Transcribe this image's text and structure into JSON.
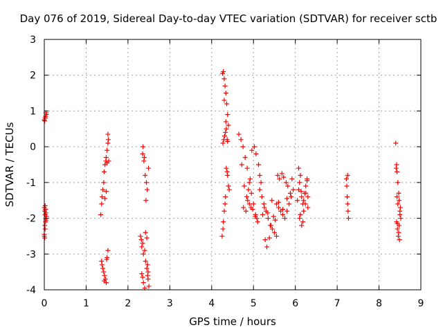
{
  "chart_data": {
    "type": "scatter",
    "title": "Day 076 of 2019, Sidereal Day-to-day VTEC variation (SDTVAR) for receiver sctb",
    "xlabel": "GPS time / hours",
    "ylabel": "SDTVAR / TECUs",
    "xlim": [
      0,
      9
    ],
    "ylim": [
      -4,
      3
    ],
    "xticks": [
      "0",
      "1",
      "2",
      "3",
      "4",
      "5",
      "6",
      "7",
      "8",
      "9"
    ],
    "yticks": [
      "-4",
      "-3",
      "-2",
      "-1",
      "0",
      "1",
      "2",
      "3"
    ],
    "grid": true,
    "marker": "+",
    "color": "#ff0000",
    "series": [
      {
        "name": "SDTVAR",
        "x": [
          0.0,
          0.01,
          0.02,
          0.03,
          0.04,
          0.05,
          0.0,
          0.01,
          0.02,
          0.03,
          0.04,
          0.05,
          0.01,
          0.02,
          0.0,
          0.03,
          0.04,
          0.05,
          0.02,
          0.01,
          0.0,
          0.03,
          1.35,
          1.37,
          1.38,
          1.4,
          1.42,
          1.43,
          1.45,
          1.47,
          1.48,
          1.5,
          1.52,
          1.52,
          1.53,
          1.54,
          1.45,
          1.48,
          1.5,
          1.38,
          1.4,
          1.42,
          1.44,
          1.46,
          1.48,
          1.5,
          1.52,
          1.37,
          1.43,
          1.49,
          2.3,
          2.32,
          2.33,
          2.35,
          2.37,
          2.4,
          2.42,
          2.45,
          2.47,
          2.48,
          2.5,
          2.33,
          2.35,
          2.37,
          2.4,
          2.42,
          2.45,
          2.47,
          2.48,
          2.35,
          2.38,
          2.41,
          2.44,
          2.46,
          2.49,
          2.36,
          2.39,
          2.43,
          4.25,
          4.27,
          4.28,
          4.3,
          4.32,
          4.33,
          4.35,
          4.37,
          4.38,
          4.4,
          4.42,
          4.28,
          4.3,
          4.32,
          4.34,
          4.36,
          4.38,
          4.4,
          4.27,
          4.29,
          4.31,
          4.33,
          4.35,
          4.37,
          4.26,
          4.3,
          4.34,
          4.38,
          4.65,
          4.7,
          4.75,
          4.8,
          4.85,
          4.9,
          4.95,
          5.0,
          5.05,
          5.1,
          4.72,
          4.78,
          4.84,
          4.88,
          4.92,
          4.96,
          5.02,
          5.06,
          5.12,
          5.15,
          4.76,
          4.82,
          4.86,
          4.9,
          4.94,
          4.98,
          5.04,
          5.08,
          5.15,
          5.2,
          5.25,
          5.3,
          5.35,
          5.4,
          5.45,
          5.5,
          5.55,
          5.18,
          5.22,
          5.28,
          5.32,
          5.38,
          5.42,
          5.48,
          5.52,
          5.26,
          5.34,
          5.44,
          5.55,
          5.6,
          5.65,
          5.7,
          5.75,
          5.8,
          5.85,
          5.9,
          5.95,
          5.58,
          5.62,
          5.68,
          5.72,
          5.78,
          5.82,
          5.88,
          5.92,
          5.6,
          5.7,
          5.8,
          6.05,
          6.08,
          6.1,
          6.12,
          6.15,
          6.18,
          6.2,
          6.22,
          6.25,
          6.28,
          6.3,
          6.1,
          6.15,
          6.2,
          6.25,
          6.3,
          6.08,
          6.12,
          6.18,
          6.24,
          6.28,
          6.14,
          7.22,
          7.23,
          7.24,
          7.25,
          7.26,
          7.27,
          7.25,
          8.4,
          8.42,
          8.43,
          8.45,
          8.47,
          8.48,
          8.5,
          8.52,
          8.42,
          8.44,
          8.46,
          8.48,
          8.5,
          8.43,
          8.45,
          8.47,
          8.49,
          8.41,
          8.44,
          8.51
        ],
        "y": [
          0.75,
          0.72,
          0.8,
          0.85,
          0.95,
          0.9,
          -1.7,
          -1.8,
          -1.9,
          -2.0,
          -2.05,
          -1.95,
          -2.2,
          -2.3,
          -2.45,
          -2.1,
          -1.85,
          -2.0,
          -1.65,
          -2.55,
          -2.5,
          -1.75,
          -1.9,
          -1.6,
          -1.4,
          -1.2,
          -1.0,
          -0.7,
          -0.5,
          -0.4,
          -0.3,
          -0.1,
          0.1,
          0.35,
          0.2,
          -0.4,
          -1.45,
          -1.25,
          -0.45,
          -3.3,
          -3.4,
          -3.5,
          -3.6,
          -3.7,
          -3.8,
          -3.1,
          -2.9,
          -3.2,
          -3.75,
          -3.15,
          -2.5,
          -2.6,
          -2.8,
          -2.7,
          -3.0,
          -2.9,
          -3.2,
          -3.4,
          -3.6,
          -3.7,
          -3.9,
          -3.55,
          -3.65,
          -3.8,
          -3.95,
          -2.4,
          -2.55,
          -3.3,
          -3.5,
          -0.2,
          -0.4,
          -0.8,
          -1.0,
          -1.2,
          -0.6,
          0.0,
          -0.3,
          -1.5,
          -2.5,
          -2.3,
          -2.1,
          -1.8,
          -1.6,
          -1.4,
          -0.6,
          -0.7,
          -0.8,
          -1.1,
          -1.2,
          2.1,
          1.9,
          1.7,
          1.5,
          1.2,
          0.9,
          0.6,
          0.1,
          0.2,
          0.3,
          0.4,
          0.5,
          0.2,
          2.05,
          1.3,
          0.7,
          0.15,
          0.35,
          0.2,
          0.0,
          -0.3,
          -0.6,
          -1.0,
          -1.3,
          -1.6,
          -1.9,
          -2.1,
          -0.5,
          -1.1,
          -1.4,
          -1.2,
          -0.9,
          -0.1,
          0.0,
          -0.2,
          -0.5,
          -0.8,
          -1.7,
          -1.8,
          -1.5,
          -1.6,
          -1.7,
          -1.75,
          -1.95,
          -2.0,
          -1.2,
          -1.4,
          -1.6,
          -1.8,
          -2.0,
          -2.2,
          -2.3,
          -2.4,
          -2.5,
          -1.0,
          -1.9,
          -2.6,
          -2.8,
          -2.55,
          -2.2,
          -1.95,
          -2.05,
          -1.7,
          -1.85,
          -1.5,
          -1.6,
          -1.7,
          -1.8,
          -1.9,
          -2.0,
          -1.8,
          -1.6,
          -1.4,
          -1.2,
          -0.8,
          -0.9,
          -0.75,
          -0.85,
          -1.0,
          -1.1,
          -1.3,
          -0.9,
          -1.55,
          -1.75,
          -1.45,
          -1.5,
          -1.2,
          -1.0,
          -0.8,
          -1.4,
          -1.6,
          -1.8,
          -1.3,
          -1.1,
          -0.9,
          -1.7,
          -2.0,
          -2.2,
          -1.5,
          -1.3,
          -1.4,
          -0.6,
          -1.9,
          -2.1,
          -1.6,
          -0.95,
          -1.25,
          -0.9,
          -1.1,
          -1.4,
          -1.6,
          -1.8,
          -2.0,
          -0.8,
          0.1,
          -0.5,
          -0.7,
          -1.0,
          -1.3,
          -1.5,
          -1.8,
          -2.0,
          -2.1,
          -2.3,
          -2.5,
          -2.2,
          -1.9,
          -1.4,
          -1.6,
          -2.4,
          -2.6,
          -0.6,
          -2.15,
          -1.7
        ]
      }
    ]
  }
}
